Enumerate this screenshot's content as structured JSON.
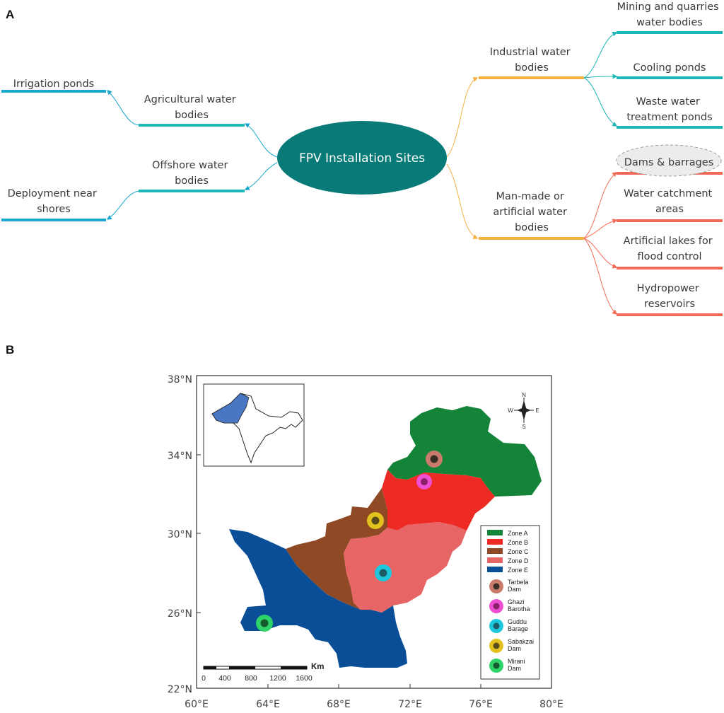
{
  "panel_a": {
    "letter": "A",
    "center": "FPV Installation Sites",
    "nodes": {
      "agricultural": [
        "Agricultural water",
        "bodies"
      ],
      "offshore": [
        "Offshore water",
        "bodies"
      ],
      "irrigation": [
        "Irrigation ponds"
      ],
      "shores": [
        "Deployment near",
        "shores"
      ],
      "industrial": [
        "Industrial water",
        "bodies"
      ],
      "mining": [
        "Mining and quarries",
        "water bodies"
      ],
      "cooling": [
        "Cooling ponds"
      ],
      "waste": [
        "Waste water",
        "treatment ponds"
      ],
      "manmade": [
        "Man-made or",
        "artificial water",
        "bodies"
      ],
      "dams": [
        "Dams & barrages"
      ],
      "catchment": [
        "Water catchment",
        "areas"
      ],
      "lakes": [
        "Artificial lakes for",
        "flood control"
      ],
      "hydro": [
        "Hydropower",
        "reservoirs"
      ]
    },
    "colors": {
      "blue": "#19a7cf",
      "teal_line": "#1fb7b5",
      "orange": "#f5b041",
      "salmon": "#f26a55",
      "center": "#087b78"
    }
  },
  "panel_b": {
    "letter": "B",
    "y_ticks": [
      "38°N",
      "34°N",
      "30°N",
      "26°N",
      "22°N"
    ],
    "x_ticks": [
      "60°E",
      "64°E",
      "68°E",
      "72°E",
      "76°E",
      "80°E"
    ],
    "compass": {
      "n": "N",
      "s": "S",
      "e": "E",
      "w": "W"
    },
    "scale_bar": {
      "unit": "Km",
      "labels": [
        "0",
        "400",
        "800",
        "1200",
        "1600"
      ]
    },
    "zones": [
      {
        "label": "Zone A",
        "color": "#138438"
      },
      {
        "label": "Zone B",
        "color": "#ee2a24"
      },
      {
        "label": "Zone C",
        "color": "#8f4a25"
      },
      {
        "label": "Zone D",
        "color": "#e86566"
      },
      {
        "label": "Zone E",
        "color": "#0a4e97"
      }
    ],
    "sites": [
      {
        "label": [
          "Tarbela",
          "Dam"
        ],
        "ring": "#c97a6a",
        "core": "#3a2f25"
      },
      {
        "label": [
          "Ghazi",
          "Barotha"
        ],
        "ring": "#ef4fd3",
        "core": "#8a1f6a"
      },
      {
        "label": [
          "Guddu",
          "Barage"
        ],
        "ring": "#1ec8dc",
        "core": "#1b5c66"
      },
      {
        "label": [
          "Sabakzai",
          "Dam"
        ],
        "ring": "#e3c21e",
        "core": "#5a4b1c"
      },
      {
        "label": [
          "Mirani",
          "Dam"
        ],
        "ring": "#2ed36a",
        "core": "#145a2b"
      }
    ]
  }
}
